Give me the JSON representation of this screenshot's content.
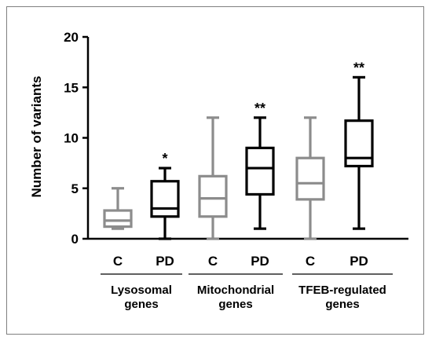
{
  "chart_data": {
    "type": "box",
    "ylabel": "Number of variants",
    "ylim": [
      0,
      20
    ],
    "yticks": [
      0,
      5,
      10,
      15,
      20
    ],
    "groups": [
      {
        "label_lines": [
          "Lysosomal",
          "genes"
        ]
      },
      {
        "label_lines": [
          "Mitochondrial",
          "genes"
        ]
      },
      {
        "label_lines": [
          "TFEB-regulated",
          "genes"
        ]
      }
    ],
    "boxes": [
      {
        "category": "C",
        "group": 0,
        "color": "#8c8c8c",
        "min": 1,
        "q1": 1.2,
        "median": 1.8,
        "q3": 2.8,
        "max": 5,
        "annotation": ""
      },
      {
        "category": "PD",
        "group": 0,
        "color": "#000000",
        "min": 0,
        "q1": 2.2,
        "median": 3.0,
        "q3": 5.7,
        "max": 7,
        "annotation": "*"
      },
      {
        "category": "C",
        "group": 1,
        "color": "#8c8c8c",
        "min": 0,
        "q1": 2.2,
        "median": 4.0,
        "q3": 6.2,
        "max": 12,
        "annotation": ""
      },
      {
        "category": "PD",
        "group": 1,
        "color": "#000000",
        "min": 1,
        "q1": 4.4,
        "median": 7.0,
        "q3": 9.0,
        "max": 12,
        "annotation": "**"
      },
      {
        "category": "C",
        "group": 2,
        "color": "#8c8c8c",
        "min": 0,
        "q1": 3.9,
        "median": 5.5,
        "q3": 8.0,
        "max": 12,
        "annotation": ""
      },
      {
        "category": "PD",
        "group": 2,
        "color": "#000000",
        "min": 1,
        "q1": 7.2,
        "median": 8.0,
        "q3": 11.7,
        "max": 16,
        "annotation": "**"
      }
    ]
  }
}
